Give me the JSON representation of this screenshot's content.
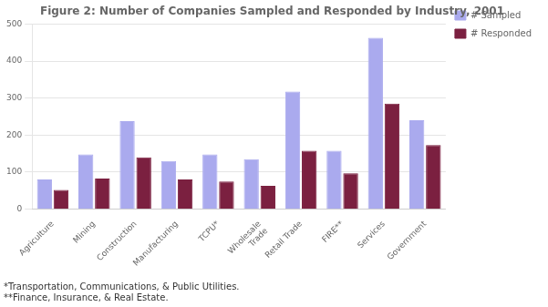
{
  "chart_data": {
    "type": "bar",
    "title": "Figure 2: Number of Companies Sampled and Responded by Industry, 2001",
    "categories": [
      "Agriculture",
      "Mining",
      "Construction",
      "Manufacturing",
      "TCPU*",
      "Wholesale\nTrade",
      "Retail Trade",
      "FIRE**",
      "Services",
      "Government"
    ],
    "series": [
      {
        "name": "# Sampled",
        "color": "#aaaaee",
        "values": [
          80,
          148,
          238,
          130,
          148,
          135,
          318,
          158,
          463,
          240
        ]
      },
      {
        "name": "# Responded",
        "color": "#7b2040",
        "values": [
          52,
          83,
          140,
          80,
          75,
          63,
          158,
          97,
          285,
          173
        ]
      }
    ],
    "ylim": [
      0,
      500
    ],
    "yticks": [
      0,
      100,
      200,
      300,
      400,
      500
    ],
    "grid": true,
    "legend": "right",
    "annotations": [
      "*Transportation, Communications, & Public Utilities.",
      "**Finance, Insurance, & Real Estate."
    ]
  }
}
